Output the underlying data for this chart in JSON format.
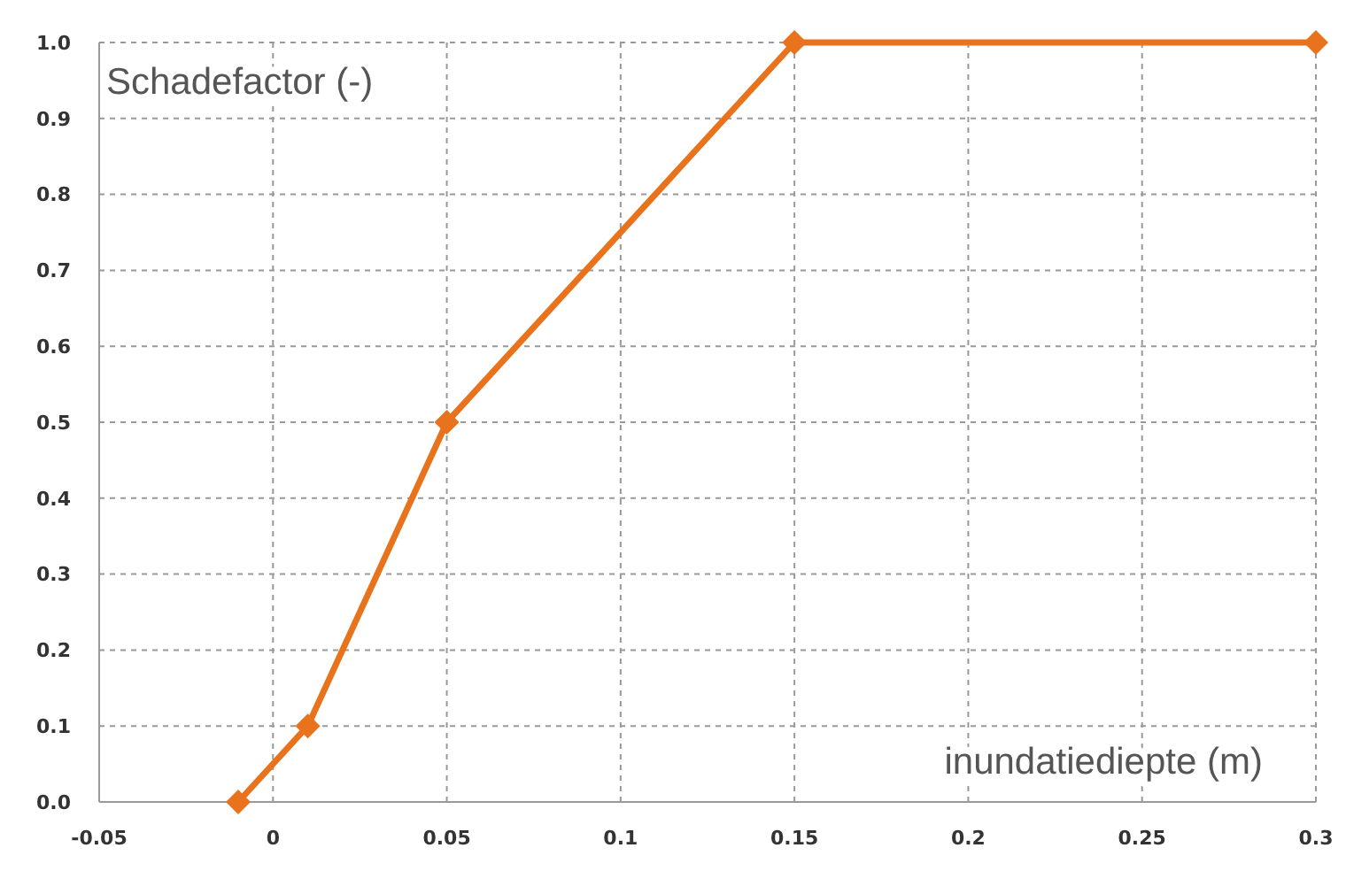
{
  "chart_data": {
    "type": "line",
    "xlabel": "inundatiediepte (m)",
    "ylabel": "Schadefactor (-)",
    "x": [
      -0.01,
      0.01,
      0.05,
      0.15,
      0.3
    ],
    "series": [
      {
        "color": "#e8731c",
        "values": [
          0,
          0.1,
          0.5,
          1.0,
          1.0
        ]
      }
    ],
    "xlim": [
      -0.05,
      0.3
    ],
    "xticks": [
      -0.05,
      0,
      0.05,
      0.1,
      0.15,
      0.2,
      0.25,
      0.3
    ],
    "ylim": [
      0,
      1
    ],
    "yticks": [
      {
        "value": 0,
        "label": "0.0"
      },
      {
        "value": 0.1,
        "label": "0.1"
      },
      {
        "value": 0.2,
        "label": "0.2"
      },
      {
        "value": 0.3,
        "label": "0.3"
      },
      {
        "value": 0.4,
        "label": "0.4"
      },
      {
        "value": 0.5,
        "label": "0.5"
      },
      {
        "value": 0.6,
        "label": "0.6"
      },
      {
        "value": 0.7,
        "label": "0.7"
      },
      {
        "value": 0.8,
        "label": "0.8"
      },
      {
        "value": 0.9,
        "label": "0.9"
      },
      {
        "value": 1,
        "label": "1.0"
      }
    ],
    "grid": true,
    "marker": "diamond",
    "line_style": "solid"
  }
}
